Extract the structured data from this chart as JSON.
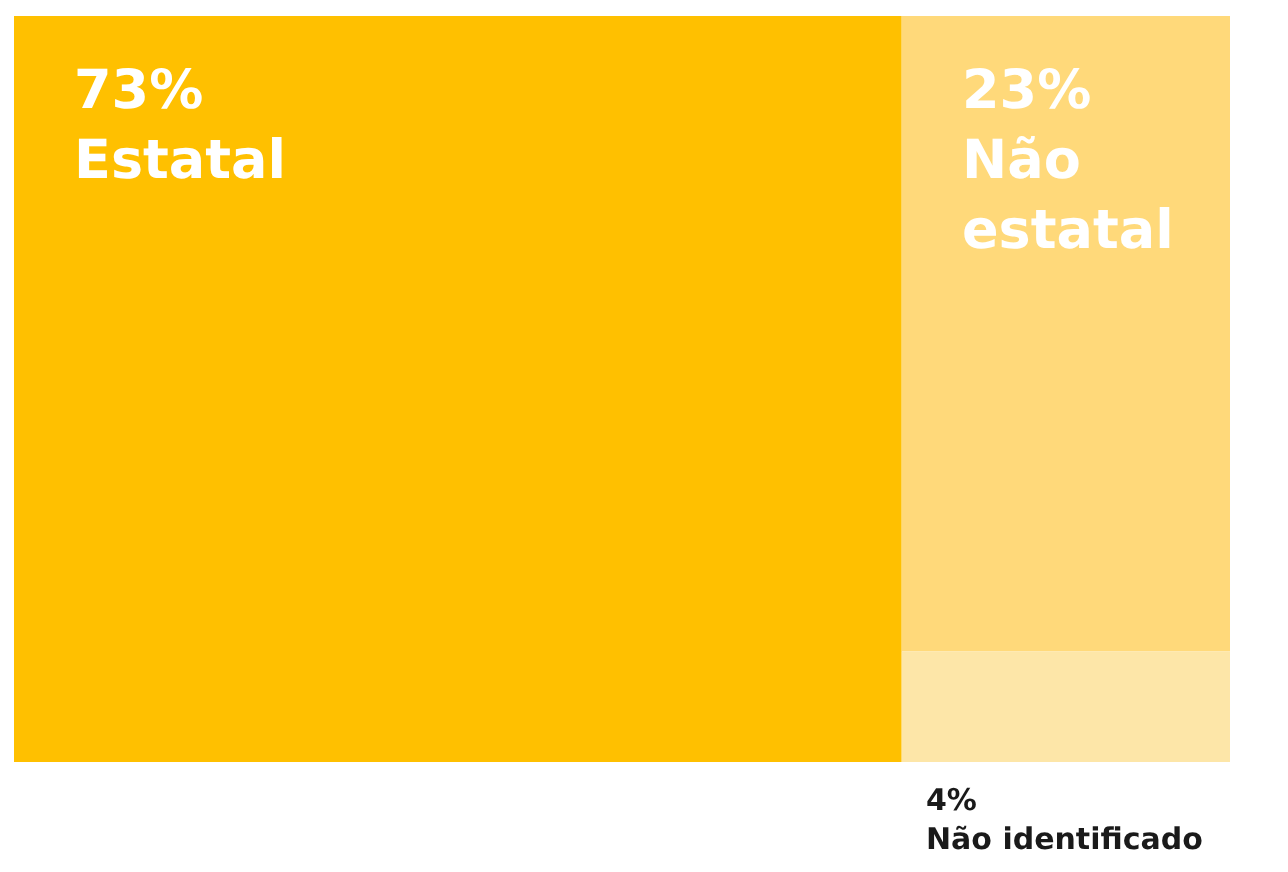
{
  "chart_data": {
    "type": "other",
    "categories": [
      "Estatal",
      "Não estatal",
      "Não identificado"
    ],
    "values": [
      73,
      23,
      4
    ],
    "value_labels": [
      "73%",
      "23%",
      "4%"
    ],
    "colors": [
      "#ffc000",
      "#ffd97a",
      "#fde6a8"
    ]
  }
}
